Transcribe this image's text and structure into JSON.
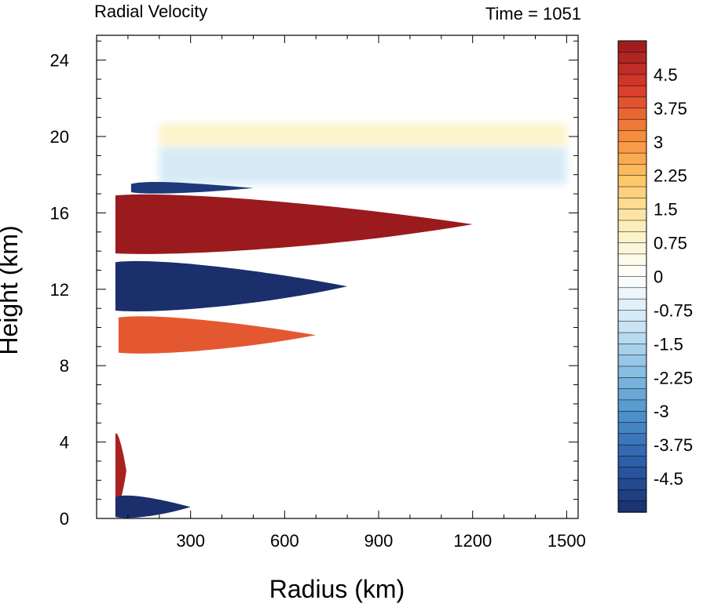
{
  "chart_data": {
    "type": "heatmap",
    "title_left": "Radial Velocity",
    "title_right": "Time = 1051",
    "xlabel": "Radius (km)",
    "ylabel": "Height (km)",
    "xlim": [
      0,
      1500
    ],
    "ylim": [
      0,
      25
    ],
    "xticks": [
      300,
      600,
      900,
      1200,
      1500
    ],
    "yticks": [
      0,
      4,
      8,
      12,
      16,
      20,
      24
    ],
    "colorbar": {
      "min": -5.25,
      "max": 5.25,
      "step": 0.25,
      "labels": [
        "4.5",
        "3.75",
        "3",
        "2.25",
        "1.5",
        "0.75",
        "0",
        "-0.75",
        "-1.5",
        "-2.25",
        "-3",
        "-3.75",
        "-4.5"
      ],
      "label_values": [
        4.5,
        3.75,
        3,
        2.25,
        1.5,
        0.75,
        0,
        -0.75,
        -1.5,
        -2.25,
        -3,
        -3.75,
        -4.5
      ],
      "colors": [
        "#1a2f6b",
        "#2b5aa8",
        "#4a8fc9",
        "#88bfe2",
        "#cde6f4",
        "#ffffff",
        "#fdf0c0",
        "#fdc96a",
        "#f58a3c",
        "#d93a2b",
        "#9a1a1e"
      ]
    },
    "features": [
      {
        "name": "upper outflow jet",
        "r_range": [
          60,
          1200
        ],
        "z_range": [
          13.8,
          17
        ],
        "value": 5.5
      },
      {
        "name": "mid-level inflow",
        "r_range": [
          60,
          800
        ],
        "z_range": [
          10.8,
          13.5
        ],
        "value": -5.5
      },
      {
        "name": "mid-level outflow",
        "r_range": [
          70,
          700
        ],
        "z_range": [
          8.6,
          10.6
        ],
        "value": 3.8
      },
      {
        "name": "low-level outflow",
        "r_range": [
          60,
          95
        ],
        "z_range": [
          0.5,
          4.5
        ],
        "value": 5.0
      },
      {
        "name": "boundary layer inflow",
        "r_range": [
          60,
          300
        ],
        "z_range": [
          0,
          1.2
        ],
        "value": -5.5
      },
      {
        "name": "upper inflow layer",
        "r_range": [
          200,
          1500
        ],
        "z_range": [
          17.5,
          19.5
        ],
        "value": -1.0
      },
      {
        "name": "upper weak outflow",
        "r_range": [
          200,
          1500
        ],
        "z_range": [
          19.5,
          20.7
        ],
        "value": 1.0
      },
      {
        "name": "thin inflow jet",
        "r_range": [
          110,
          500
        ],
        "z_range": [
          17.0,
          17.6
        ],
        "value": -5.0
      }
    ]
  }
}
